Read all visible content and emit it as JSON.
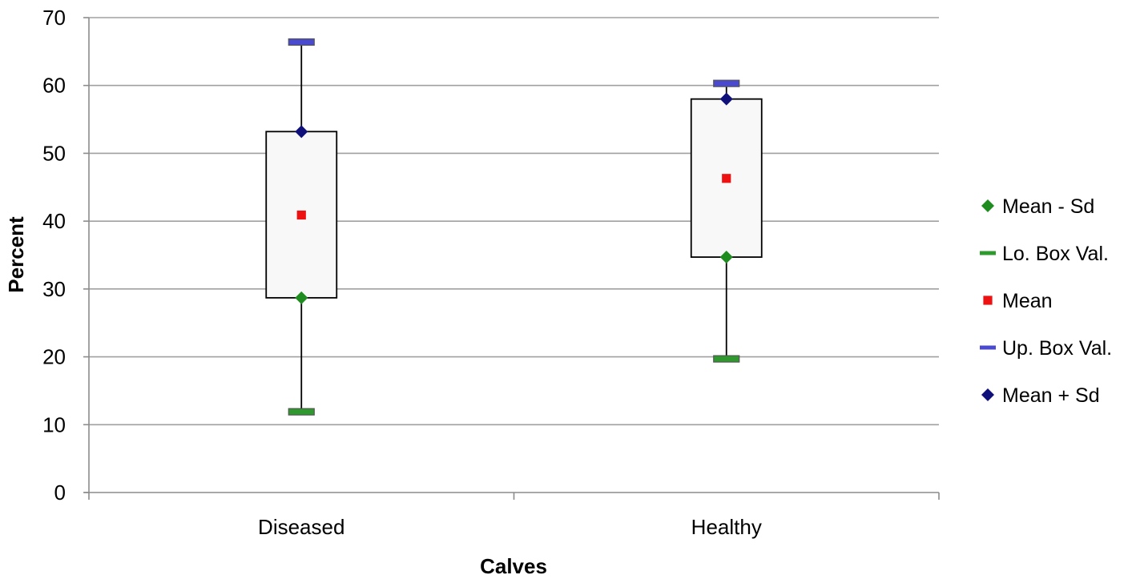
{
  "chart_data": {
    "type": "box",
    "title": "",
    "xlabel": "Calves",
    "ylabel": "Percent",
    "ylim": [
      0,
      70
    ],
    "yticks": [
      0,
      10,
      20,
      30,
      40,
      50,
      60,
      70
    ],
    "grid": true,
    "legend_position": "right",
    "categories": [
      "Diseased",
      "Healthy"
    ],
    "series": [
      {
        "key": "mean_minus_sd",
        "name": "Mean - Sd",
        "marker": "diamond",
        "color": "#1e8c1e",
        "values": [
          28.7,
          34.7
        ]
      },
      {
        "key": "lo_box_val",
        "name": "Lo. Box Val.",
        "marker": "dash",
        "color": "#2e9a2e",
        "values": [
          11.9,
          19.7
        ]
      },
      {
        "key": "mean",
        "name": "Mean",
        "marker": "square",
        "color": "#ee1111",
        "values": [
          40.9,
          46.3
        ]
      },
      {
        "key": "up_box_val",
        "name": "Up. Box Val.",
        "marker": "dash",
        "color": "#4a4ad0",
        "values": [
          66.4,
          60.3
        ]
      },
      {
        "key": "mean_plus_sd",
        "name": "Mean + Sd",
        "marker": "diamond",
        "color": "#10107a",
        "values": [
          53.2,
          58.0
        ]
      }
    ],
    "box_fill": "#f8f8f8",
    "gridline_color": "#a0a0a0"
  }
}
